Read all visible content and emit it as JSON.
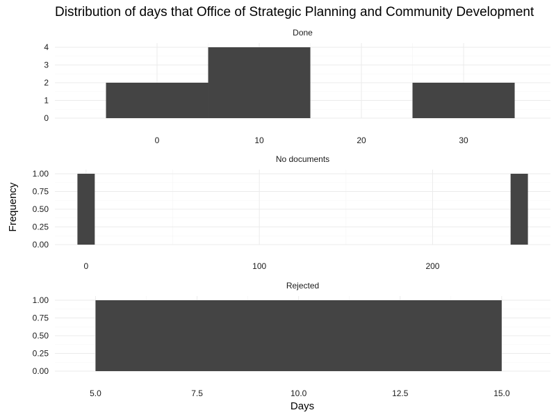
{
  "chart_data": {
    "type": "bar",
    "title": "Distribution of days that Office of Strategic Planning and Community Development",
    "xlabel": "Days",
    "ylabel": "Frequency",
    "colors": {
      "bar": "#444444",
      "grid": "#ebebeb",
      "background": "#ffffff"
    },
    "panels": [
      {
        "name": "Done",
        "xlim": [
          -10,
          38.5
        ],
        "ylim": [
          0,
          4
        ],
        "xticks": [
          0,
          10,
          20,
          30
        ],
        "xtick_labels": [
          "0",
          "10",
          "20",
          "30"
        ],
        "yticks": [
          0,
          1,
          2,
          3,
          4
        ],
        "ytick_labels": [
          "0",
          "1",
          "2",
          "3",
          "4"
        ],
        "bins": [
          {
            "start": -5,
            "end": 5,
            "count": 2
          },
          {
            "start": 5,
            "end": 15,
            "count": 4
          },
          {
            "start": 25,
            "end": 35,
            "count": 2
          }
        ]
      },
      {
        "name": "No documents",
        "xlim": [
          -18,
          268
        ],
        "ylim": [
          0,
          1
        ],
        "xticks": [
          0,
          100,
          200
        ],
        "xtick_labels": [
          "0",
          "100",
          "200"
        ],
        "yticks": [
          0,
          0.25,
          0.5,
          0.75,
          1
        ],
        "ytick_labels": [
          "0.00",
          "0.25",
          "0.50",
          "0.75",
          "1.00"
        ],
        "bins": [
          {
            "start": -5,
            "end": 5,
            "count": 1
          },
          {
            "start": 245,
            "end": 255,
            "count": 1
          }
        ]
      },
      {
        "name": "Rejected",
        "xlim": [
          4.0,
          16.2
        ],
        "ylim": [
          0,
          1
        ],
        "xticks": [
          5,
          7.5,
          10,
          12.5,
          15
        ],
        "xtick_labels": [
          "5.0",
          "7.5",
          "10.0",
          "12.5",
          "15.0"
        ],
        "yticks": [
          0,
          0.25,
          0.5,
          0.75,
          1
        ],
        "ytick_labels": [
          "0.00",
          "0.25",
          "0.50",
          "0.75",
          "1.00"
        ],
        "bins": [
          {
            "start": 5,
            "end": 15,
            "count": 1
          }
        ]
      }
    ]
  }
}
